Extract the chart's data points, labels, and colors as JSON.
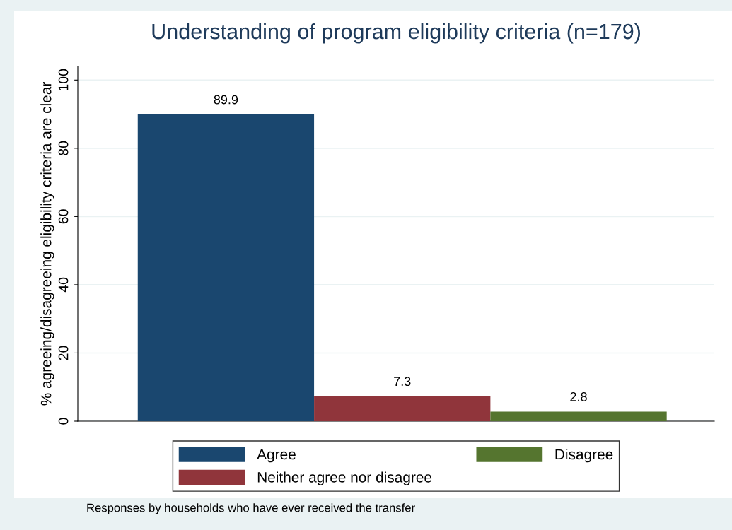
{
  "chart_data": {
    "type": "bar",
    "title": "Understanding of program eligibility criteria (n=179)",
    "ylabel": "% agreeing/disagreeing eligibility criteria are clear",
    "categories": [
      null
    ],
    "series": [
      {
        "name": "Agree",
        "color": "#1a476f",
        "values": [
          89.9
        ]
      },
      {
        "name": "Neither agree nor disagree",
        "color": "#90353b",
        "values": [
          7.3
        ]
      },
      {
        "name": "Disagree",
        "color": "#55752f",
        "values": [
          2.8
        ]
      }
    ],
    "ylim": [
      0,
      104
    ],
    "yticks": [
      0,
      20,
      40,
      60,
      80,
      100
    ],
    "grid": "y",
    "data_labels": true,
    "legend": "bottom",
    "annotations": [
      "Responses by households who have ever received the transfer"
    ]
  }
}
